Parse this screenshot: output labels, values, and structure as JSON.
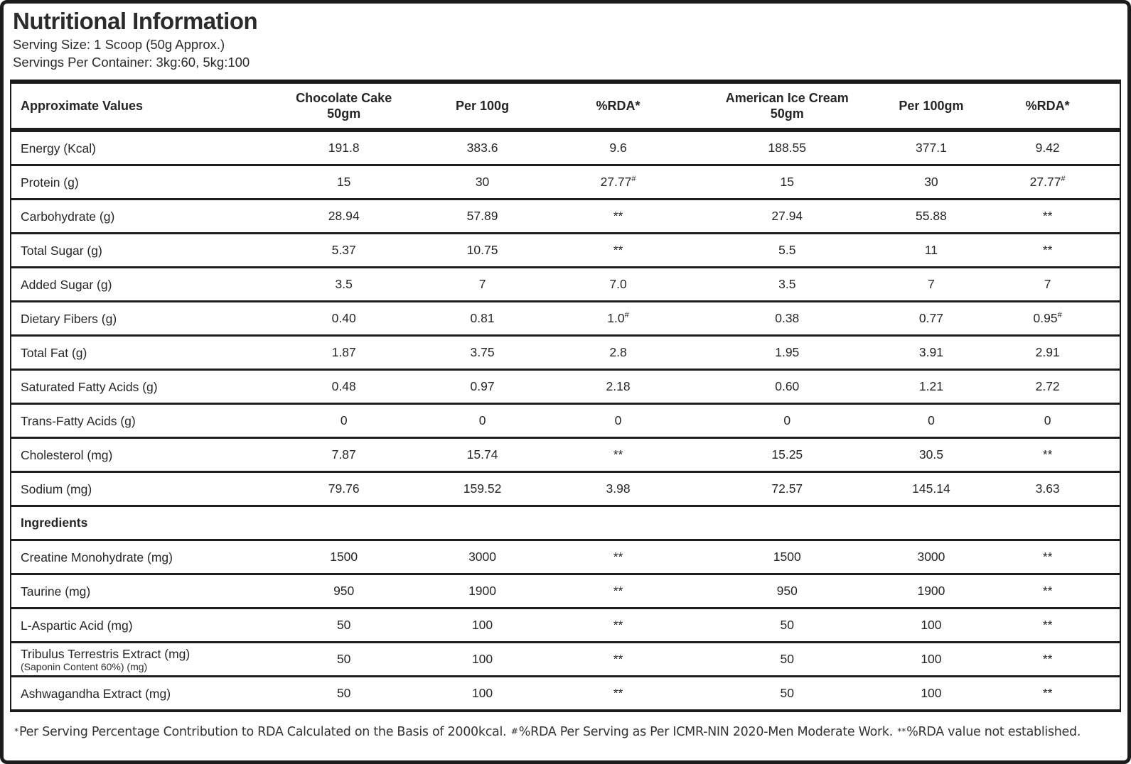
{
  "header": {
    "title": "Nutritional Information",
    "serving_size": "Serving Size: 1 Scoop (50g Approx.)",
    "servings_per_container": "Servings Per Container: 3kg:60, 5kg:100"
  },
  "table": {
    "columns": [
      {
        "label": "Approximate Values"
      },
      {
        "label": "Chocolate Cake\n50gm"
      },
      {
        "label": "Per 100g"
      },
      {
        "label": "%RDA*"
      },
      {
        "label": "American Ice Cream\n50gm"
      },
      {
        "label": "Per 100gm"
      },
      {
        "label": "%RDA*"
      }
    ],
    "rows": [
      {
        "label": "Energy (Kcal)",
        "cells": [
          "191.8",
          "383.6",
          "9.6",
          "188.55",
          "377.1",
          "9.42"
        ]
      },
      {
        "label": "Protein (g)",
        "cells": [
          "15",
          "30",
          {
            "t": "27.77",
            "sup": "#"
          },
          "15",
          "30",
          {
            "t": "27.77",
            "sup": "#"
          }
        ]
      },
      {
        "label": "Carbohydrate (g)",
        "cells": [
          "28.94",
          "57.89",
          "**",
          "27.94",
          "55.88",
          "**"
        ]
      },
      {
        "label": "Total Sugar (g)",
        "cells": [
          "5.37",
          "10.75",
          "**",
          "5.5",
          "11",
          "**"
        ]
      },
      {
        "label": "Added Sugar (g)",
        "cells": [
          "3.5",
          "7",
          "7.0",
          "3.5",
          "7",
          "7"
        ]
      },
      {
        "label": "Dietary Fibers (g)",
        "cells": [
          "0.40",
          "0.81",
          {
            "t": "1.0",
            "sup": "#"
          },
          "0.38",
          "0.77",
          {
            "t": "0.95",
            "sup": "#"
          }
        ]
      },
      {
        "label": "Total Fat (g)",
        "cells": [
          "1.87",
          "3.75",
          "2.8",
          "1.95",
          "3.91",
          "2.91"
        ]
      },
      {
        "label": "Saturated Fatty Acids (g)",
        "cells": [
          "0.48",
          "0.97",
          "2.18",
          "0.60",
          "1.21",
          "2.72"
        ]
      },
      {
        "label": "Trans-Fatty Acids (g)",
        "cells": [
          "0",
          "0",
          "0",
          "0",
          "0",
          "0"
        ]
      },
      {
        "label": "Cholesterol (mg)",
        "cells": [
          "7.87",
          "15.74",
          "**",
          "15.25",
          "30.5",
          "**"
        ]
      },
      {
        "label": "Sodium (mg)",
        "cells": [
          "79.76",
          "159.52",
          "3.98",
          "72.57",
          "145.14",
          "3.63"
        ]
      },
      {
        "section": "Ingredients"
      },
      {
        "label": "Creatine Monohydrate (mg)",
        "cells": [
          "1500",
          "3000",
          "**",
          "1500",
          "3000",
          "**"
        ]
      },
      {
        "label": "Taurine (mg)",
        "cells": [
          "950",
          "1900",
          "**",
          "950",
          "1900",
          "**"
        ]
      },
      {
        "label": "L-Aspartic Acid (mg)",
        "cells": [
          "50",
          "100",
          "**",
          "50",
          "100",
          "**"
        ]
      },
      {
        "label": "Tribulus Terrestris Extract (mg)",
        "sublabel": "(Saponin Content 60%) (mg)",
        "cells": [
          "50",
          "100",
          "**",
          "50",
          "100",
          "**"
        ]
      },
      {
        "label": "Ashwagandha Extract (mg)",
        "cells": [
          "50",
          "100",
          "**",
          "50",
          "100",
          "**"
        ]
      }
    ]
  },
  "footnote": {
    "parts": [
      {
        "t": "*",
        "small": true
      },
      {
        "t": "Per Serving Percentage Contribution to RDA Calculated on the Basis of 2000kcal. ",
        "small": false
      },
      {
        "t": "#",
        "small": true
      },
      {
        "t": "%RDA Per Serving as Per ICMR-NIN 2020-Men Moderate Work. ",
        "small": false
      },
      {
        "t": "**",
        "small": true
      },
      {
        "t": "%RDA value not established.",
        "small": false
      }
    ]
  },
  "colors": {
    "text": "#262626",
    "border": "#1c1c1c",
    "background": "#ffffff"
  }
}
